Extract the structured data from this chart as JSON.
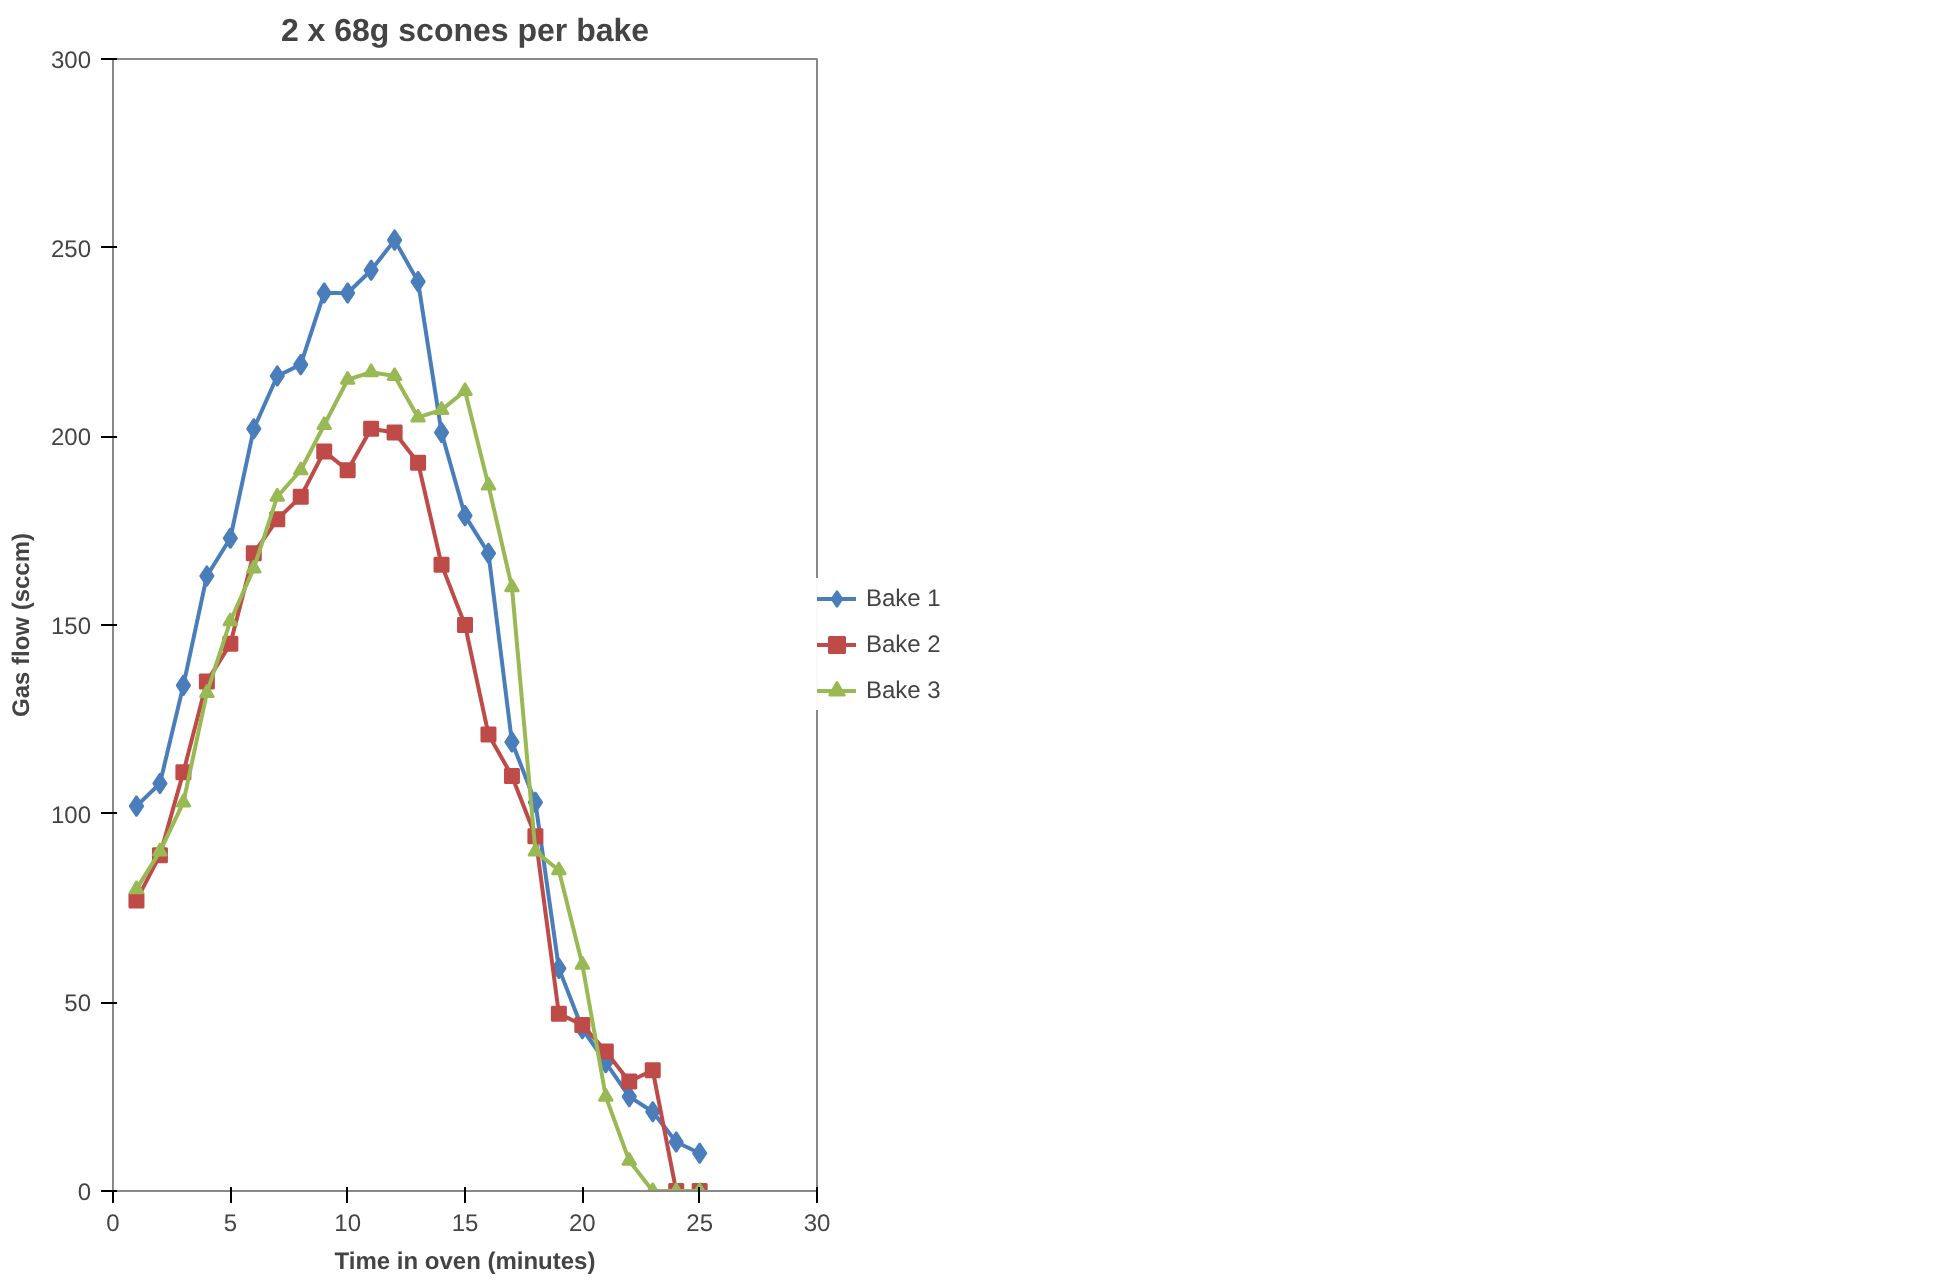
{
  "chart_data": {
    "type": "line",
    "title": "2 x 68g scones per bake",
    "xlabel": "Time in oven (minutes)",
    "ylabel": "Gas flow (sccm)",
    "x": [
      1,
      2,
      3,
      4,
      5,
      6,
      7,
      8,
      9,
      10,
      11,
      12,
      13,
      14,
      15,
      16,
      17,
      18,
      19,
      20,
      21,
      22,
      23,
      24,
      25
    ],
    "series": [
      {
        "name": "Bake 1",
        "color": "#4a7ebb",
        "marker": "diamond",
        "values": [
          102,
          108,
          134,
          163,
          173,
          202,
          216,
          219,
          238,
          238,
          244,
          252,
          241,
          201,
          179,
          169,
          119,
          103,
          59,
          43,
          34,
          25,
          21,
          13,
          10
        ]
      },
      {
        "name": "Bake 2",
        "color": "#be4b48",
        "marker": "square",
        "values": [
          77,
          89,
          111,
          135,
          145,
          169,
          178,
          184,
          196,
          191,
          202,
          201,
          193,
          166,
          150,
          121,
          110,
          94,
          47,
          44,
          37,
          29,
          32,
          0,
          0
        ]
      },
      {
        "name": "Bake 3",
        "color": "#98b954",
        "marker": "triangle",
        "values": [
          80,
          90,
          103,
          132,
          151,
          165,
          184,
          191,
          203,
          215,
          217,
          216,
          205,
          207,
          212,
          187,
          160,
          90,
          85,
          60,
          25,
          8,
          0,
          0,
          0
        ]
      }
    ],
    "xlim": [
      0,
      30
    ],
    "xticks": [
      0,
      5,
      10,
      15,
      20,
      25,
      30
    ],
    "ylim": [
      0,
      300
    ],
    "yticks": [
      0,
      50,
      100,
      150,
      200,
      250,
      300
    ],
    "grid": false,
    "legend": "right",
    "line_style": "solid"
  }
}
